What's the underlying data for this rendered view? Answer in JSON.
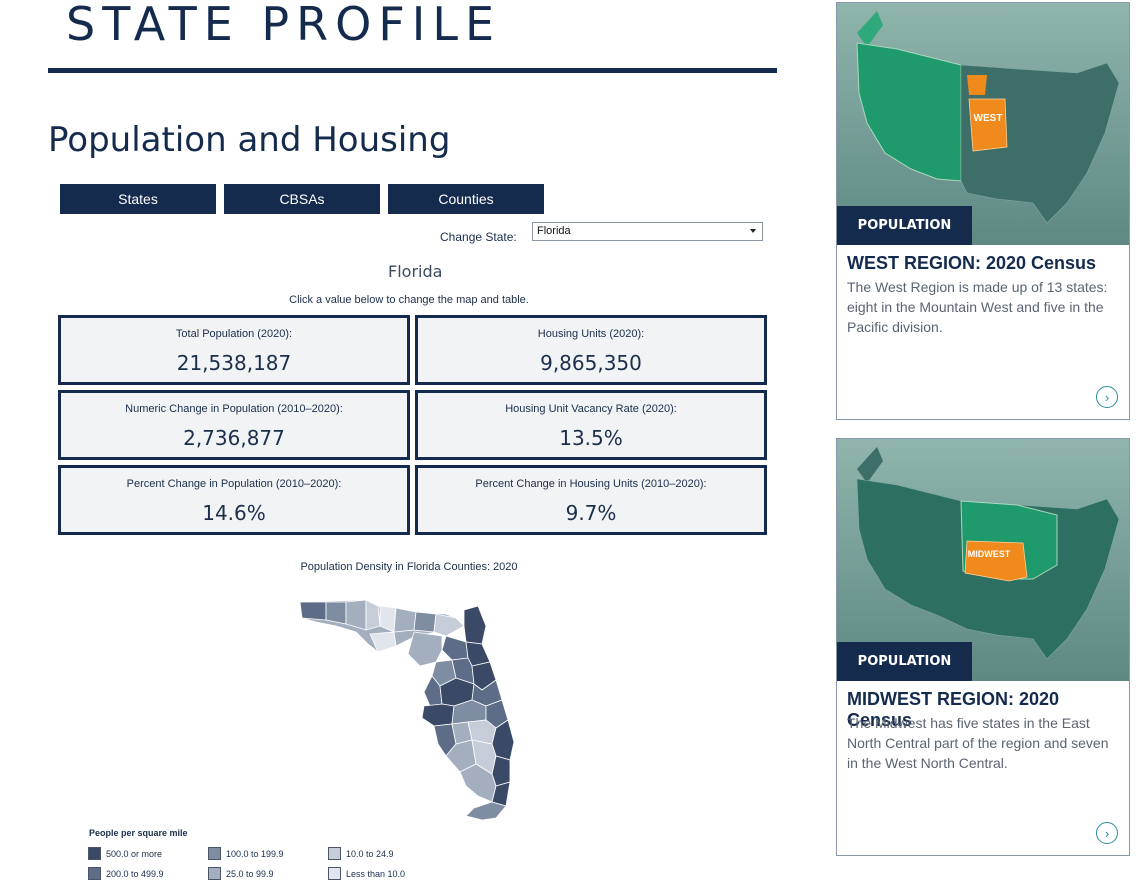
{
  "page": {
    "heading": "STATE PROFILE",
    "section_title": "Population and Housing"
  },
  "tabs": [
    "States",
    "CBSAs",
    "Counties"
  ],
  "state_selector": {
    "label": "Change State:",
    "selected": "Florida"
  },
  "state_name": "Florida",
  "hint": "Click a value below to change the map and table.",
  "stats": [
    {
      "label": "Total Population (2020):",
      "value": "21,538,187"
    },
    {
      "label": "Housing Units (2020):",
      "value": "9,865,350"
    },
    {
      "label": "Numeric Change in Population (2010–2020):",
      "value": "2,736,877"
    },
    {
      "label": "Housing Unit Vacancy Rate (2020):",
      "value": "13.5%"
    },
    {
      "label": "Percent Change in Population (2010–2020):",
      "value": "14.6%"
    },
    {
      "label": "Percent Change in Housing Units (2010–2020):",
      "value": "9.7%"
    }
  ],
  "map": {
    "title": "Population Density in Florida Counties: 2020",
    "legend_title": "People per square mile",
    "legend": [
      {
        "label": "500.0 or more",
        "color": "#3a4a66"
      },
      {
        "label": "200.0 to 499.9",
        "color": "#5d6d88"
      },
      {
        "label": "100.0 to 199.9",
        "color": "#7f8da3"
      },
      {
        "label": "25.0 to 99.9",
        "color": "#a3aebf"
      },
      {
        "label": "10.0 to 24.9",
        "color": "#c6cdd8"
      },
      {
        "label": "Less than 10.0",
        "color": "#e2e6ec"
      }
    ]
  },
  "cards": [
    {
      "badge": "POPULATION",
      "title": "WEST REGION: 2020 Census",
      "description": "The West Region is made up of 13 states: eight in the Mountain West and five in the Pacific division.",
      "map_label": "WEST"
    },
    {
      "badge": "POPULATION",
      "title": "MIDWEST REGION: 2020 Census",
      "description": "The Midwest has five states in the East North Central part of the region and seven in the West North Central.",
      "map_label": "MIDWEST"
    }
  ],
  "colors": {
    "navy": "#152b4d",
    "card_green": "#1f9a6c",
    "highlight_orange": "#f08a1c"
  }
}
